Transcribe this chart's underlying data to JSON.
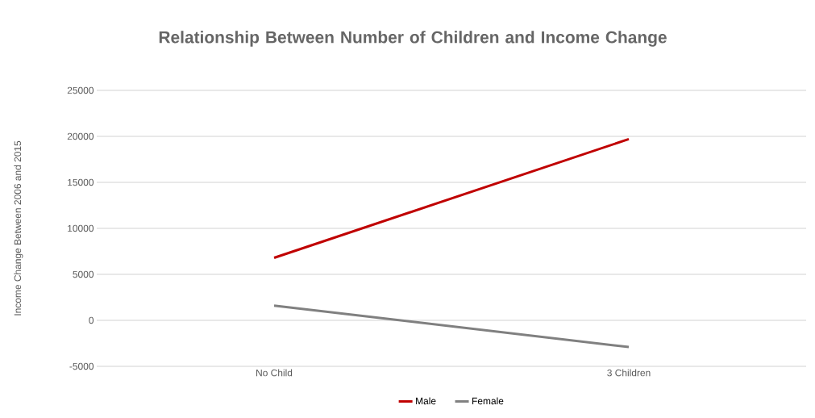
{
  "chart_data": {
    "type": "line",
    "title": "Relationship Between Number of Children and Income Change",
    "ylabel": "Income Change Between 2006 and 2015",
    "categories": [
      "No Child",
      "3 Children"
    ],
    "series": [
      {
        "name": "Male",
        "color": "#c00000",
        "values": [
          6800,
          19700
        ]
      },
      {
        "name": "Female",
        "color": "#808080",
        "values": [
          1600,
          -2900
        ]
      }
    ],
    "ylim": [
      -5000,
      25000
    ],
    "yticks": [
      -5000,
      0,
      5000,
      10000,
      15000,
      20000,
      25000
    ],
    "grid": "y",
    "legend": "bottom",
    "marker": "none"
  }
}
